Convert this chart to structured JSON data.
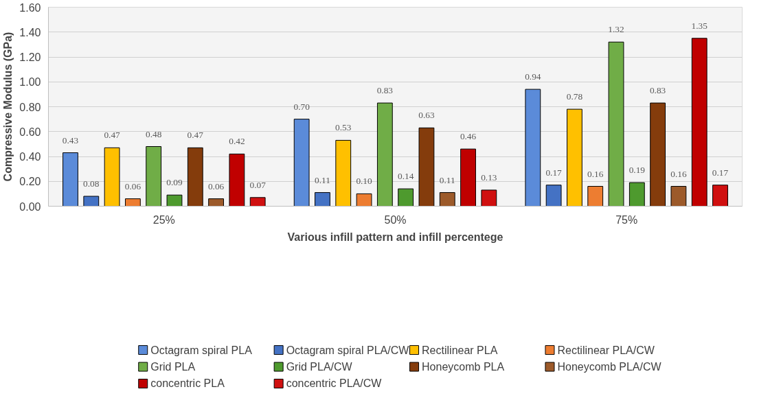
{
  "chart_data": {
    "type": "bar",
    "xlabel": "Various infill pattern and infill percentege",
    "ylabel": "Compressive Modulus (GPa)",
    "categories": [
      "25%",
      "50%",
      "75%"
    ],
    "series": [
      {
        "name": "Octagram spiral PLA",
        "color": "#5b8bd9",
        "values": [
          0.43,
          0.7,
          0.94
        ],
        "value_labels": [
          "0.43",
          "0.70",
          "0.94"
        ]
      },
      {
        "name": "Octagram spiral PLA/CW",
        "color": "#4472c4",
        "values": [
          0.08,
          0.11,
          0.17
        ],
        "value_labels": [
          "0.08",
          "0.11",
          "0.17"
        ]
      },
      {
        "name": "Rectilinear PLA",
        "color": "#ffc000",
        "values": [
          0.47,
          0.53,
          0.78
        ],
        "value_labels": [
          "0.47",
          "0.53",
          "0.78"
        ]
      },
      {
        "name": "Rectilinear PLA/CW",
        "color": "#ed7d31",
        "values": [
          0.06,
          0.1,
          0.16
        ],
        "value_labels": [
          "0.06",
          "0.10",
          "0.16"
        ]
      },
      {
        "name": "Grid PLA",
        "color": "#70ad47",
        "values": [
          0.48,
          0.83,
          1.32
        ],
        "value_labels": [
          "0.48",
          "0.83",
          "1.32"
        ]
      },
      {
        "name": "Grid PLA/CW",
        "color": "#4e9a2e",
        "values": [
          0.09,
          0.14,
          0.19
        ],
        "value_labels": [
          "0.09",
          "0.14",
          "0.19"
        ]
      },
      {
        "name": "Honeycomb PLA",
        "color": "#843c0c",
        "values": [
          0.47,
          0.63,
          0.83
        ],
        "value_labels": [
          "0.47",
          "0.63",
          "0.83"
        ]
      },
      {
        "name": "Honeycomb PLA/CW",
        "color": "#9c5a2a",
        "values": [
          0.06,
          0.11,
          0.16
        ],
        "value_labels": [
          "0.06",
          "0.11",
          "0.16"
        ]
      },
      {
        "name": "concentric PLA",
        "color": "#c00000",
        "values": [
          0.42,
          0.46,
          1.35
        ],
        "value_labels": [
          "0.42",
          "0.46",
          "1.35"
        ]
      },
      {
        "name": "concentric PLA/CW",
        "color": "#d01010",
        "values": [
          0.07,
          0.13,
          0.17
        ],
        "value_labels": [
          "0.07",
          "0.13",
          "0.17"
        ]
      }
    ],
    "ylim": [
      0,
      1.6
    ],
    "yticks": [
      {
        "value": 0,
        "label": "0.00"
      },
      {
        "value": 0.2,
        "label": "0.20"
      },
      {
        "value": 0.4,
        "label": "0.40"
      },
      {
        "value": 0.6,
        "label": "0.60"
      },
      {
        "value": 0.8,
        "label": "0.80"
      },
      {
        "value": 1.0,
        "label": "1.00"
      },
      {
        "value": 1.2,
        "label": "1.20"
      },
      {
        "value": 1.4,
        "label": "1.40"
      },
      {
        "value": 1.6,
        "label": "1.60"
      }
    ],
    "grid": "y",
    "legend": "bottom"
  }
}
